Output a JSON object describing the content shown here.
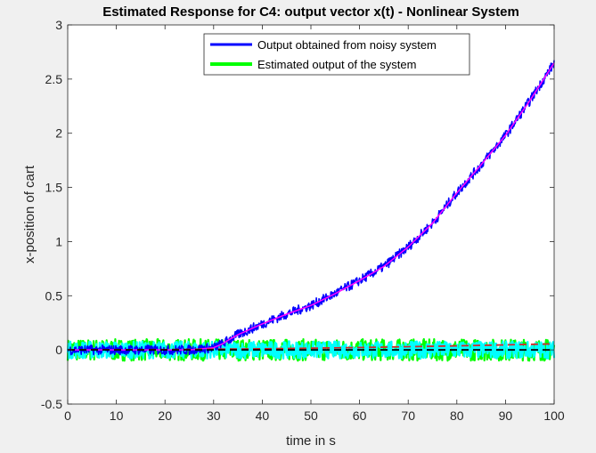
{
  "chart_data": {
    "type": "line",
    "title": "Estimated Response for C4: output vector x(t) - Nonlinear System",
    "xlabel": "time in s",
    "ylabel": "x-position of cart",
    "xlim": [
      0,
      100
    ],
    "ylim": [
      -0.5,
      3
    ],
    "xticks": [
      "0",
      "10",
      "20",
      "30",
      "40",
      "50",
      "60",
      "70",
      "80",
      "90",
      "100"
    ],
    "yticks": [
      "-0.5",
      "0",
      "0.5",
      "1",
      "1.5",
      "2",
      "2.5",
      "3"
    ],
    "grid": false,
    "legend_position": "top-right",
    "series": [
      {
        "name": "Output obtained from noisy system",
        "color": "#0000ff",
        "style": "noisy-line",
        "x": [
          0,
          10,
          20,
          25,
          30,
          31,
          32,
          33,
          35,
          40,
          45,
          50,
          55,
          60,
          65,
          70,
          75,
          80,
          85,
          90,
          95,
          100
        ],
        "y": [
          0,
          0,
          0,
          0,
          0.02,
          0.04,
          0.06,
          0.09,
          0.14,
          0.24,
          0.33,
          0.41,
          0.52,
          0.64,
          0.77,
          0.95,
          1.17,
          1.45,
          1.71,
          1.98,
          2.3,
          2.65
        ],
        "noise": 0.045
      },
      {
        "name": "Estimated output of the system",
        "color": "#00ff00",
        "style": "noisy-band",
        "x": [
          0,
          100
        ],
        "y": [
          0,
          0
        ],
        "noise": 0.1
      },
      {
        "color": "#00ffff",
        "style": "noisy-band",
        "x": [
          0,
          100
        ],
        "y": [
          0,
          0
        ],
        "noise": 0.08
      },
      {
        "color": "#ff00ff",
        "style": "solid",
        "x": [
          0,
          10,
          20,
          25,
          30,
          31,
          32,
          33,
          35,
          40,
          45,
          50,
          55,
          60,
          65,
          70,
          75,
          80,
          85,
          90,
          95,
          100
        ],
        "y": [
          0,
          0,
          0,
          0,
          0.02,
          0.04,
          0.06,
          0.09,
          0.14,
          0.24,
          0.33,
          0.41,
          0.52,
          0.64,
          0.77,
          0.95,
          1.17,
          1.45,
          1.71,
          1.98,
          2.3,
          2.65
        ]
      },
      {
        "color": "#d62728",
        "style": "dashed",
        "x": [
          0,
          20,
          40,
          60,
          80,
          100
        ],
        "y": [
          0,
          0.003,
          0.01,
          0.022,
          0.037,
          0.055
        ]
      },
      {
        "color": "#000000",
        "style": "dashed",
        "x": [
          0,
          100
        ],
        "y": [
          0,
          0
        ]
      }
    ]
  }
}
